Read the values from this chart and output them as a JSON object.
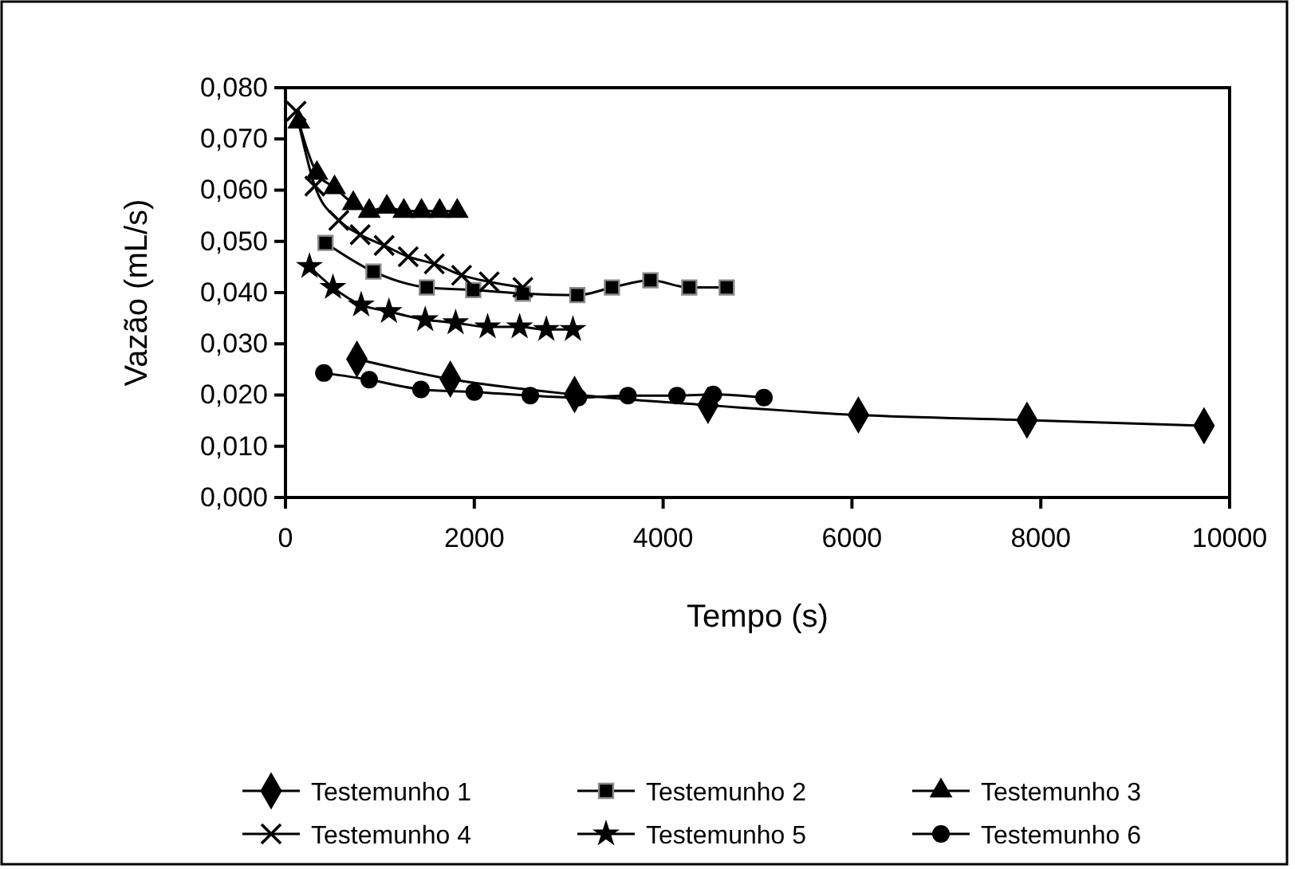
{
  "chart_data": {
    "type": "line",
    "xlabel": "Tempo (s)",
    "ylabel": "Vazão (mL/s)",
    "xlim": [
      0,
      10000
    ],
    "xticks": [
      0,
      2000,
      4000,
      6000,
      8000,
      10000
    ],
    "ylim": [
      0,
      0.08
    ],
    "yticks": [
      {
        "value": 0,
        "label": "0,000"
      },
      {
        "value": 0.01,
        "label": "0,010"
      },
      {
        "value": 0.02,
        "label": "0,020"
      },
      {
        "value": 0.03,
        "label": "0,030"
      },
      {
        "value": 0.04,
        "label": "0,040"
      },
      {
        "value": 0.05,
        "label": "0,050"
      },
      {
        "value": 0.06,
        "label": "0,060"
      },
      {
        "value": 0.07,
        "label": "0,070"
      },
      {
        "value": 0.08,
        "label": "0,080"
      }
    ],
    "grid": false,
    "legend": "bottom",
    "line_style": "solid",
    "series": [
      {
        "name": "Testemunho 1",
        "color": "#000000",
        "marker": "diamond",
        "x": [
          757,
          1746,
          3062,
          4475,
          6068,
          7854,
          9729
        ],
        "values": [
          0.027,
          0.0231,
          0.0201,
          0.018,
          0.0161,
          0.0151,
          0.014
        ]
      },
      {
        "name": "Testemunho 2",
        "color": "#000000",
        "marker": "square",
        "x": [
          424,
          932,
          1497,
          1989,
          2514,
          3091,
          3458,
          3865,
          4277,
          4673
        ],
        "values": [
          0.0497,
          0.0441,
          0.041,
          0.0405,
          0.0398,
          0.0395,
          0.041,
          0.0424,
          0.041,
          0.041
        ]
      },
      {
        "name": "Testemunho 3",
        "color": "#000000",
        "marker": "triangle",
        "x": [
          141,
          333,
          520,
          718,
          887,
          1074,
          1254,
          1441,
          1633,
          1819
        ],
        "values": [
          0.0733,
          0.0633,
          0.0605,
          0.0574,
          0.0559,
          0.0567,
          0.0559,
          0.0559,
          0.0559,
          0.0559
        ]
      },
      {
        "name": "Testemunho 4",
        "color": "#000000",
        "marker": "cross",
        "x": [
          113,
          311,
          565,
          791,
          1045,
          1300,
          1576,
          1865,
          2158,
          2514
        ],
        "values": [
          0.0754,
          0.0608,
          0.0541,
          0.0513,
          0.0492,
          0.047,
          0.0456,
          0.0434,
          0.0421,
          0.041
        ]
      },
      {
        "name": "Testemunho 5",
        "color": "#000000",
        "marker": "star",
        "x": [
          254,
          503,
          802,
          1096,
          1480,
          1802,
          2141,
          2480,
          2763,
          3045
        ],
        "values": [
          0.0451,
          0.041,
          0.0376,
          0.0363,
          0.0347,
          0.0341,
          0.0333,
          0.0333,
          0.0328,
          0.0328
        ]
      },
      {
        "name": "Testemunho 6",
        "color": "#000000",
        "marker": "circle",
        "x": [
          407,
          887,
          1435,
          2000,
          2593,
          3102,
          3627,
          4147,
          4531,
          5068
        ],
        "values": [
          0.0243,
          0.023,
          0.0211,
          0.0206,
          0.0199,
          0.0195,
          0.0199,
          0.0199,
          0.0201,
          0.0195
        ]
      }
    ]
  }
}
